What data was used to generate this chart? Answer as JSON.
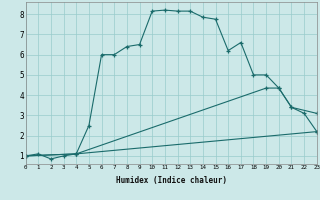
{
  "xlabel": "Humidex (Indice chaleur)",
  "bg_color": "#cce8e8",
  "line_color": "#1a6b6b",
  "grid_color": "#99cccc",
  "line1_x": [
    0,
    1,
    2,
    3,
    4,
    5,
    6,
    7,
    8,
    9,
    10,
    11,
    12,
    13,
    14,
    15,
    16,
    17,
    18,
    19,
    20,
    21,
    22,
    23
  ],
  "line1_y": [
    1.0,
    1.1,
    0.85,
    1.0,
    1.1,
    2.5,
    6.0,
    6.0,
    6.4,
    6.5,
    8.15,
    8.2,
    8.15,
    8.15,
    7.85,
    7.75,
    6.2,
    6.6,
    5.0,
    5.0,
    4.35,
    3.4,
    3.1,
    2.2
  ],
  "line2_x": [
    0,
    4,
    19,
    20,
    21,
    23
  ],
  "line2_y": [
    1.0,
    1.1,
    4.35,
    4.35,
    3.4,
    3.1
  ],
  "line3_x": [
    0,
    4,
    23
  ],
  "line3_y": [
    1.0,
    1.1,
    2.2
  ],
  "xmin": 0,
  "xmax": 23,
  "ymin": 0.6,
  "ymax": 8.6,
  "yticks": [
    1,
    2,
    3,
    4,
    5,
    6,
    7,
    8
  ],
  "xticks": [
    0,
    1,
    2,
    3,
    4,
    5,
    6,
    7,
    8,
    9,
    10,
    11,
    12,
    13,
    14,
    15,
    16,
    17,
    18,
    19,
    20,
    21,
    22,
    23
  ]
}
